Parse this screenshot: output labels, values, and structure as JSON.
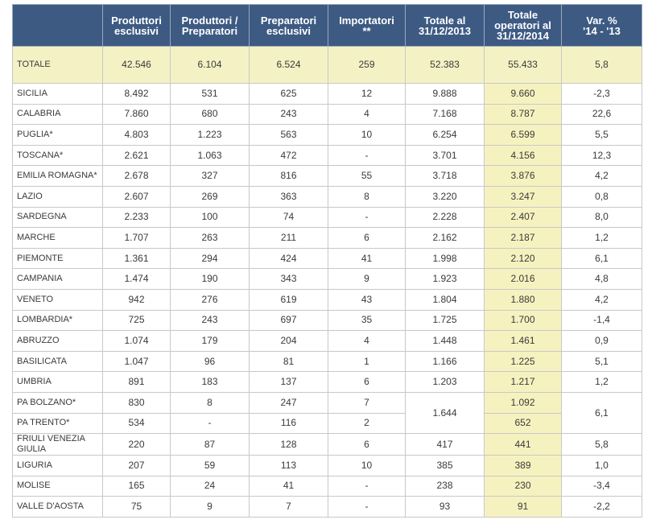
{
  "table": {
    "header": [
      "Produttori\nesclusivi",
      "Produttori /\nPreparatori",
      "Preparatori\nesclusivi",
      "Importatori\n**",
      "Totale al\n31/12/2013",
      "Totale\noperatori al\n31/12/2014",
      "Var. %\n'14 - '13"
    ],
    "total": {
      "name": "TOTALE",
      "cells": [
        "42.546",
        "6.104",
        "6.524",
        "259",
        "52.383",
        "55.433",
        "5,8"
      ]
    },
    "rows": [
      {
        "name": "SICILIA",
        "cells": [
          "8.492",
          "531",
          "625",
          "12",
          "9.888",
          "9.660",
          "-2,3"
        ]
      },
      {
        "name": "CALABRIA",
        "cells": [
          "7.860",
          "680",
          "243",
          "4",
          "7.168",
          "8.787",
          "22,6"
        ]
      },
      {
        "name": "PUGLIA*",
        "cells": [
          "4.803",
          "1.223",
          "563",
          "10",
          "6.254",
          "6.599",
          "5,5"
        ]
      },
      {
        "name": "TOSCANA*",
        "cells": [
          "2.621",
          "1.063",
          "472",
          "-",
          "3.701",
          "4.156",
          "12,3"
        ]
      },
      {
        "name": "EMILIA ROMAGNA*",
        "cells": [
          "2.678",
          "327",
          "816",
          "55",
          "3.718",
          "3.876",
          "4,2"
        ]
      },
      {
        "name": "LAZIO",
        "cells": [
          "2.607",
          "269",
          "363",
          "8",
          "3.220",
          "3.247",
          "0,8"
        ]
      },
      {
        "name": "SARDEGNA",
        "cells": [
          "2.233",
          "100",
          "74",
          "-",
          "2.228",
          "2.407",
          "8,0"
        ]
      },
      {
        "name": "MARCHE",
        "cells": [
          "1.707",
          "263",
          "211",
          "6",
          "2.162",
          "2.187",
          "1,2"
        ]
      },
      {
        "name": "PIEMONTE",
        "cells": [
          "1.361",
          "294",
          "424",
          "41",
          "1.998",
          "2.120",
          "6,1"
        ]
      },
      {
        "name": "CAMPANIA",
        "cells": [
          "1.474",
          "190",
          "343",
          "9",
          "1.923",
          "2.016",
          "4,8"
        ]
      },
      {
        "name": "VENETO",
        "cells": [
          "942",
          "276",
          "619",
          "43",
          "1.804",
          "1.880",
          "4,2"
        ]
      },
      {
        "name": "LOMBARDIA*",
        "cells": [
          "725",
          "243",
          "697",
          "35",
          "1.725",
          "1.700",
          "-1,4"
        ]
      },
      {
        "name": "ABRUZZO",
        "cells": [
          "1.074",
          "179",
          "204",
          "4",
          "1.448",
          "1.461",
          "0,9"
        ]
      },
      {
        "name": "BASILICATA",
        "cells": [
          "1.047",
          "96",
          "81",
          "1",
          "1.166",
          "1.225",
          "5,1"
        ]
      },
      {
        "name": "UMBRIA",
        "cells": [
          "891",
          "183",
          "137",
          "6",
          "1.203",
          "1.217",
          "1,2"
        ]
      },
      {
        "name": "PA BOLZANO*",
        "cells": [
          "830",
          "8",
          "247",
          "7",
          "1.644",
          "1.092",
          "6,1"
        ]
      },
      {
        "name": "PA TRENTO*",
        "cells": [
          "534",
          "-",
          "116",
          "2",
          null,
          "652",
          null
        ]
      },
      {
        "name": "FRIULI VENEZIA GIULIA",
        "cells": [
          "220",
          "87",
          "128",
          "6",
          "417",
          "441",
          "5,8"
        ]
      },
      {
        "name": "LIGURIA",
        "cells": [
          "207",
          "59",
          "113",
          "10",
          "385",
          "389",
          "1,0"
        ]
      },
      {
        "name": "MOLISE",
        "cells": [
          "165",
          "24",
          "41",
          "-",
          "238",
          "230",
          "-3,4"
        ]
      },
      {
        "name": "VALLE D'AOSTA",
        "cells": [
          "75",
          "9",
          "7",
          "-",
          "93",
          "91",
          "-2,2"
        ]
      }
    ]
  }
}
